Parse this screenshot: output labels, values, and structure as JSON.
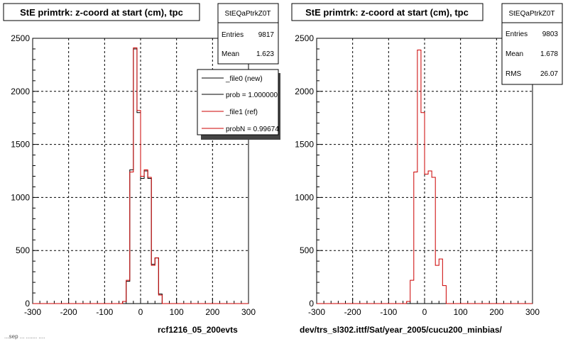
{
  "footer_date": "...sep ... ....... ....",
  "colors": {
    "new": "#000000",
    "ref": "#cc0000",
    "grid": "#000000",
    "frame": "#000000"
  },
  "panels": [
    {
      "title": "StE primtrk: z-coord at start (cm), tpc",
      "stats": {
        "name": "StEQaPtrkZ0T",
        "rows": [
          {
            "label": "Entries",
            "value": "9817"
          },
          {
            "label": "Mean",
            "value": "1.623"
          }
        ]
      },
      "legend": [
        {
          "label": "_file0 (new)",
          "color": "#000000"
        },
        {
          "label": "prob = 1.000000",
          "color": "#000000"
        },
        {
          "label": "_file1 (ref)",
          "color": "#cc0000"
        },
        {
          "label": "probN = 0.99674",
          "color": "#cc0000"
        }
      ],
      "caption": "rcf1216_05_200evts"
    },
    {
      "title": "StE primtrk: z-coord at start (cm), tpc",
      "stats": {
        "name": "StEQaPtrkZ0T",
        "rows": [
          {
            "label": "Entries",
            "value": "9803"
          },
          {
            "label": "Mean",
            "value": "1.678"
          },
          {
            "label": "RMS",
            "value": "26.07"
          }
        ]
      },
      "legend": [],
      "caption": "dev/trs_sl302.ittf/Sat/year_2005/cucu200_minbias/"
    }
  ],
  "chart_data": [
    {
      "type": "line",
      "title": "StE primtrk: z-coord at start (cm), tpc",
      "xlim": [
        -300,
        300
      ],
      "ylim": [
        0,
        2500
      ],
      "x_ticks": [
        -300,
        -200,
        -100,
        0,
        100,
        200,
        300
      ],
      "y_ticks": [
        0,
        500,
        1000,
        1500,
        2000,
        2500
      ],
      "grid": true,
      "bin_edges": [
        -300,
        -290,
        -280,
        -270,
        -260,
        -250,
        -240,
        -230,
        -220,
        -210,
        -200,
        -190,
        -180,
        -170,
        -160,
        -150,
        -140,
        -130,
        -120,
        -110,
        -100,
        -90,
        -80,
        -70,
        -60,
        -50,
        -40,
        -30,
        -20,
        -10,
        0,
        10,
        20,
        30,
        40,
        50,
        60,
        70,
        80,
        90,
        100,
        110,
        120,
        130,
        140,
        150,
        160,
        170,
        180,
        190,
        200,
        210,
        220,
        230,
        240,
        250,
        260,
        270,
        280,
        290,
        300
      ],
      "series": [
        {
          "name": "_file0 (new)",
          "color": "#000000",
          "values": [
            0,
            0,
            0,
            0,
            0,
            0,
            0,
            0,
            0,
            0,
            0,
            0,
            0,
            0,
            0,
            0,
            0,
            0,
            0,
            0,
            0,
            0,
            0,
            0,
            0,
            20,
            210,
            1260,
            2400,
            1800,
            1180,
            1250,
            1180,
            370,
            430,
            90,
            0,
            0,
            0,
            0,
            0,
            0,
            0,
            0,
            0,
            0,
            0,
            0,
            0,
            0,
            0,
            0,
            0,
            0,
            0,
            0,
            0,
            0,
            0,
            0
          ]
        },
        {
          "name": "_file1 (ref)",
          "color": "#cc0000",
          "values": [
            0,
            0,
            0,
            0,
            0,
            0,
            0,
            0,
            0,
            0,
            0,
            0,
            0,
            0,
            0,
            0,
            0,
            0,
            0,
            0,
            0,
            0,
            0,
            0,
            0,
            20,
            220,
            1240,
            2410,
            1820,
            1200,
            1260,
            1190,
            360,
            430,
            80,
            0,
            0,
            0,
            0,
            0,
            0,
            0,
            0,
            0,
            0,
            0,
            0,
            0,
            0,
            0,
            0,
            0,
            0,
            0,
            0,
            0,
            0,
            0,
            0
          ]
        }
      ]
    },
    {
      "type": "line",
      "title": "StE primtrk: z-coord at start (cm), tpc",
      "xlim": [
        -300,
        300
      ],
      "ylim": [
        0,
        2500
      ],
      "x_ticks": [
        -300,
        -200,
        -100,
        0,
        100,
        200,
        300
      ],
      "y_ticks": [
        0,
        500,
        1000,
        1500,
        2000,
        2500
      ],
      "grid": true,
      "bin_edges": [
        -300,
        -290,
        -280,
        -270,
        -260,
        -250,
        -240,
        -230,
        -220,
        -210,
        -200,
        -190,
        -180,
        -170,
        -160,
        -150,
        -140,
        -130,
        -120,
        -110,
        -100,
        -90,
        -80,
        -70,
        -60,
        -50,
        -40,
        -30,
        -20,
        -10,
        0,
        10,
        20,
        30,
        40,
        50,
        60,
        70,
        80,
        90,
        100,
        110,
        120,
        130,
        140,
        150,
        160,
        170,
        180,
        190,
        200,
        210,
        220,
        230,
        240,
        250,
        260,
        270,
        280,
        290,
        300
      ],
      "series": [
        {
          "name": "",
          "color": "#cc0000",
          "values": [
            0,
            0,
            0,
            0,
            0,
            0,
            0,
            0,
            0,
            0,
            0,
            0,
            0,
            0,
            0,
            0,
            0,
            0,
            0,
            0,
            0,
            0,
            0,
            0,
            0,
            20,
            220,
            1240,
            2390,
            1800,
            1220,
            1250,
            1190,
            360,
            420,
            170,
            0,
            0,
            0,
            0,
            0,
            0,
            0,
            0,
            0,
            0,
            0,
            0,
            0,
            0,
            0,
            0,
            0,
            0,
            0,
            0,
            0,
            0,
            0,
            0
          ]
        }
      ]
    }
  ]
}
